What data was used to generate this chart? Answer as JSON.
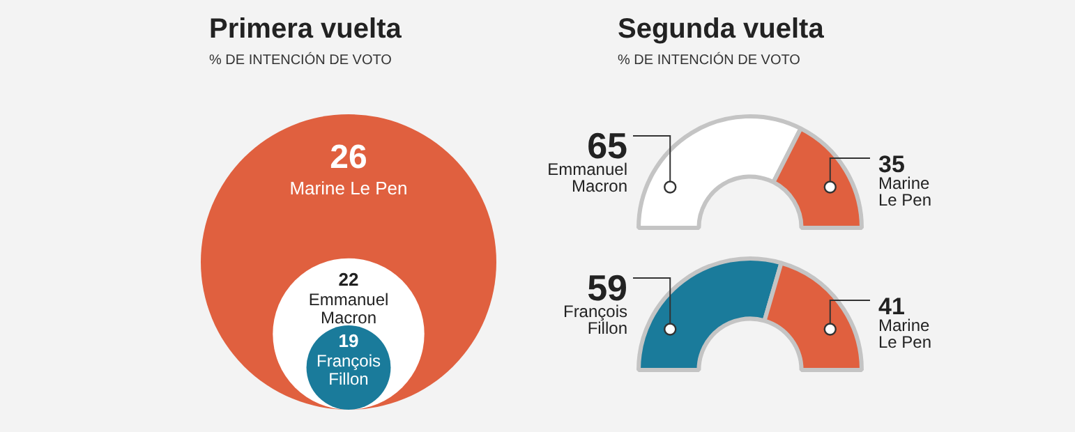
{
  "chart_data": [
    {
      "type": "other",
      "title": "Primera vuelta",
      "subtitle": "% DE INTENCIÓN DE VOTO",
      "categories": [
        "Marine Le Pen",
        "Emmanuel Macron",
        "François Fillon"
      ],
      "values": [
        26,
        22,
        19
      ],
      "colors": [
        "#e0603f",
        "#ffffff",
        "#1a7b9b"
      ],
      "data_labels": true
    },
    {
      "type": "donut",
      "title": "Segunda vuelta",
      "subtitle": "% DE INTENCIÓN DE VOTO",
      "categories": [
        "Emmanuel Macron",
        "Marine Le Pen"
      ],
      "values": [
        65,
        35
      ],
      "colors": [
        "#ffffff",
        "#e0603f"
      ],
      "data_labels": true
    },
    {
      "type": "donut",
      "categories": [
        "François Fillon",
        "Marine Le Pen"
      ],
      "values": [
        59,
        41
      ],
      "colors": [
        "#1a7b9b",
        "#e0603f"
      ],
      "data_labels": true
    }
  ]
}
